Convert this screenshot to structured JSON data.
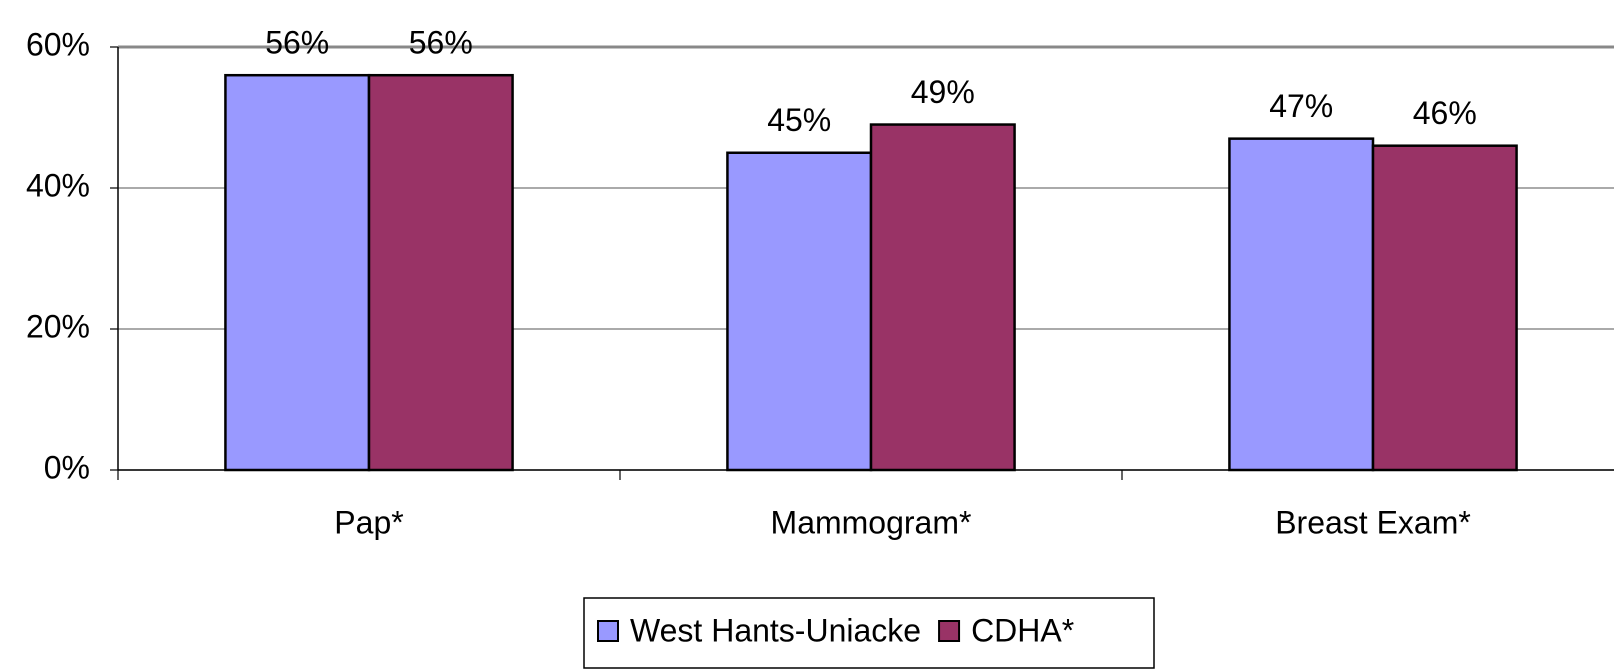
{
  "chart_data": {
    "type": "bar",
    "categories": [
      "Pap*",
      "Mammogram*",
      "Breast Exam*"
    ],
    "series": [
      {
        "name": "West Hants-Uniacke",
        "color": "#9999ff",
        "values": [
          56,
          45,
          47
        ],
        "value_labels": [
          "56%",
          "45%",
          "47%"
        ]
      },
      {
        "name": "CDHA*",
        "color": "#993366",
        "values": [
          56,
          49,
          46
        ],
        "value_labels": [
          "56%",
          "49%",
          "46%"
        ]
      }
    ],
    "ylim": [
      0,
      60
    ],
    "yticks": [
      {
        "value": 0,
        "label": "0%"
      },
      {
        "value": 20,
        "label": "20%"
      },
      {
        "value": 40,
        "label": "40%"
      },
      {
        "value": 60,
        "label": "60%"
      }
    ],
    "grid": true,
    "legend": "bottom"
  }
}
